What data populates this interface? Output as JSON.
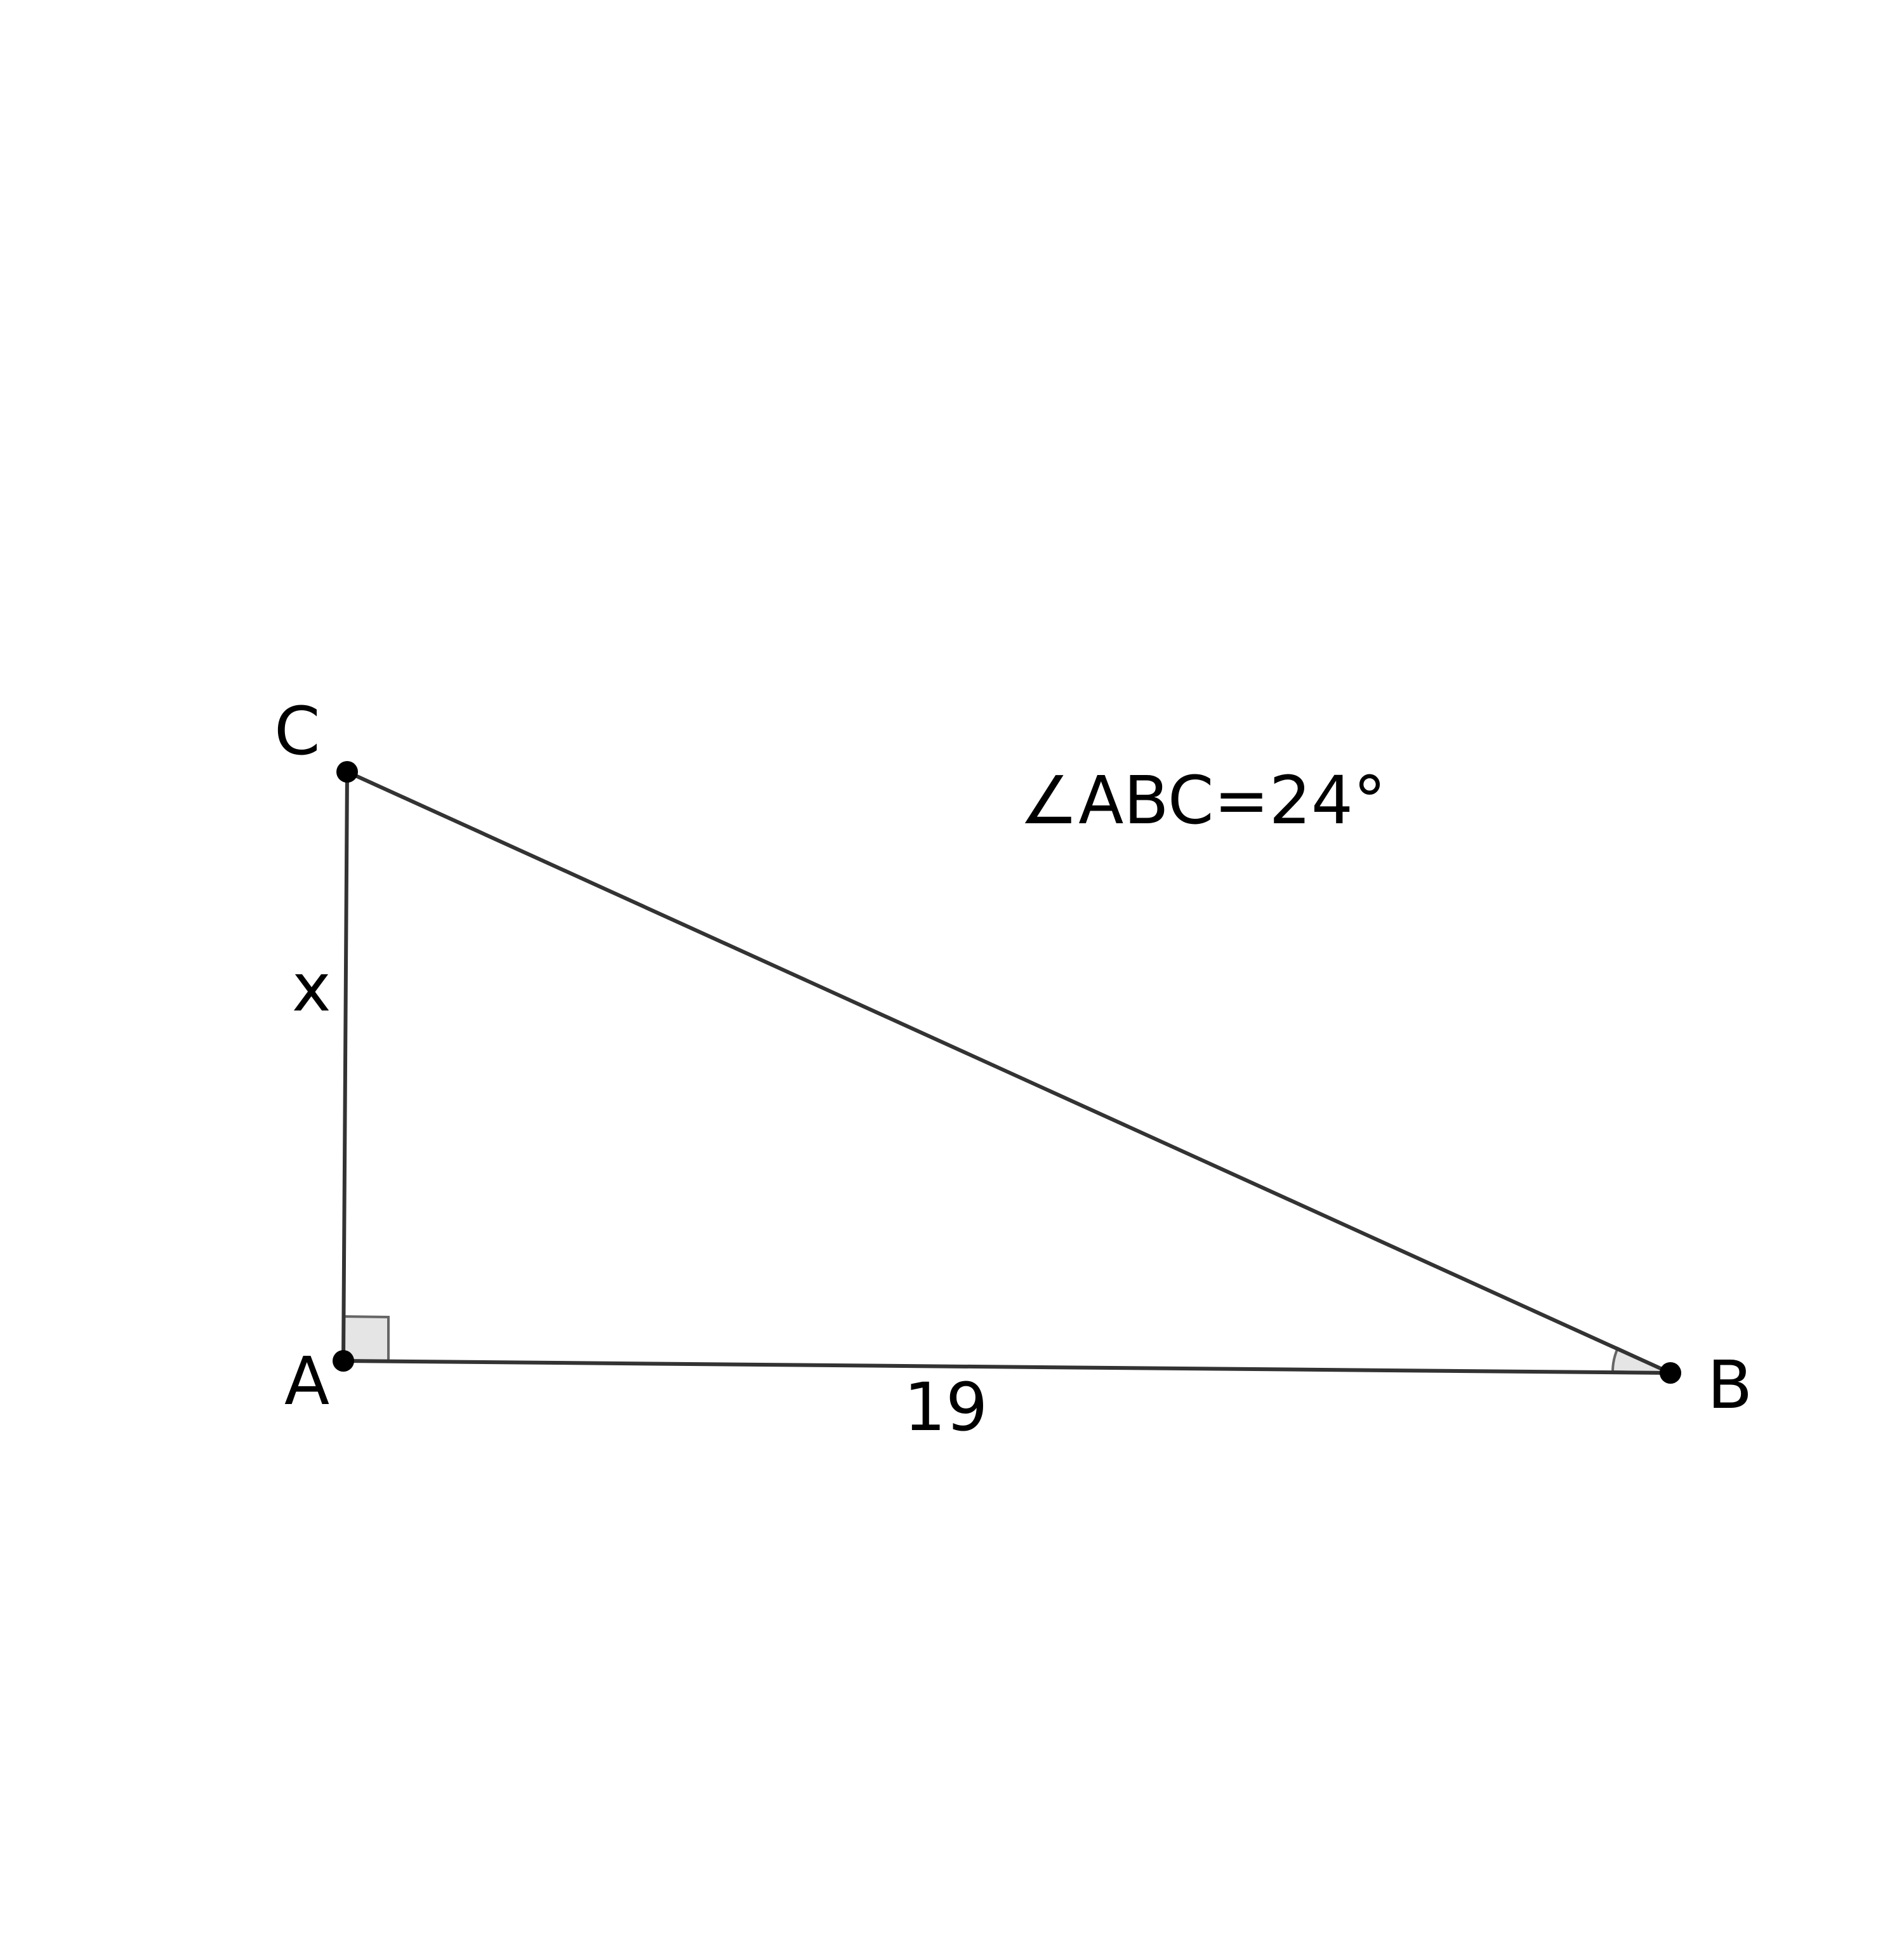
{
  "figure": {
    "points": {
      "A": {
        "label": "A"
      },
      "B": {
        "label": "B"
      },
      "C": {
        "label": "C"
      }
    },
    "sides": {
      "AB": {
        "label": "19"
      },
      "AC": {
        "label": "x"
      },
      "BC": {
        "label": ""
      }
    },
    "angle_note": "∠ABC=24°",
    "right_angle_at": "A",
    "marked_angle_at": "B"
  }
}
